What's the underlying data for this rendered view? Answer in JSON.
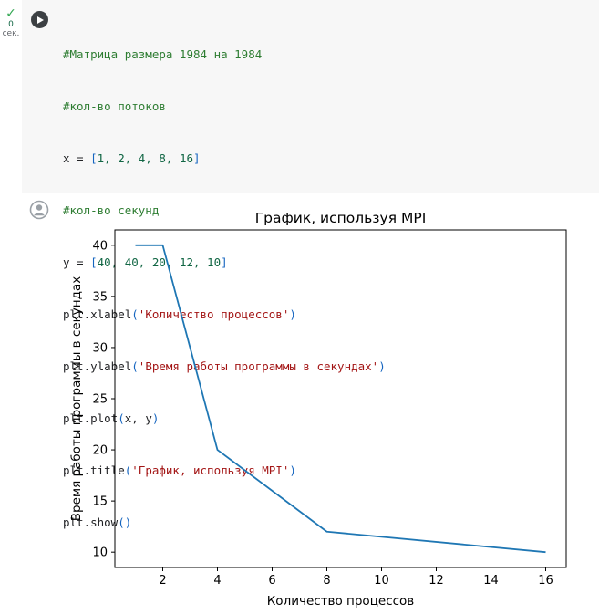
{
  "status": {
    "check": "✓",
    "seconds": "0",
    "unit": "сек."
  },
  "code": {
    "line1": "#Матрица размера 1984 на 1984",
    "line2": "#кол-во потоков",
    "line3_var": "x = ",
    "line3_open": "[",
    "line3_nums": "1, 2, 4, 8, 16",
    "line3_close": "]",
    "line4": "#кол-во секунд",
    "line5_var": "y = ",
    "line5_open": "[",
    "line5_nums": "40, 40, 20, 12, 10",
    "line5_close": "]",
    "line6_fn": "plt.xlabel",
    "line6_str": "'Количество процессов'",
    "line7_fn": "plt.ylabel",
    "line7_str": "'Время работы программы в секундах'",
    "line8_fn": "plt.plot",
    "line8_args": "x, y",
    "line9_fn": "plt.title",
    "line9_str": "'График, используя MPI'",
    "line10_fn": "plt.show",
    "lp": "(",
    "rp": ")",
    "empty_call": "()"
  },
  "icons": {
    "run": "play-icon",
    "status": "check-icon",
    "output": "user-avatar-icon"
  },
  "chart_data": {
    "type": "line",
    "title": "График, используя MPI",
    "xlabel": "Количество процессов",
    "ylabel": "Время работы программы в секундах",
    "x": [
      1,
      2,
      4,
      8,
      16
    ],
    "y": [
      40,
      40,
      20,
      12,
      10
    ],
    "xticks": [
      2,
      4,
      6,
      8,
      10,
      12,
      14,
      16
    ],
    "yticks": [
      10,
      15,
      20,
      25,
      30,
      35,
      40
    ],
    "xlim": [
      0.25,
      16.75
    ],
    "ylim": [
      8.5,
      41.5
    ],
    "line_color": "#1f77b4",
    "grid": false
  }
}
